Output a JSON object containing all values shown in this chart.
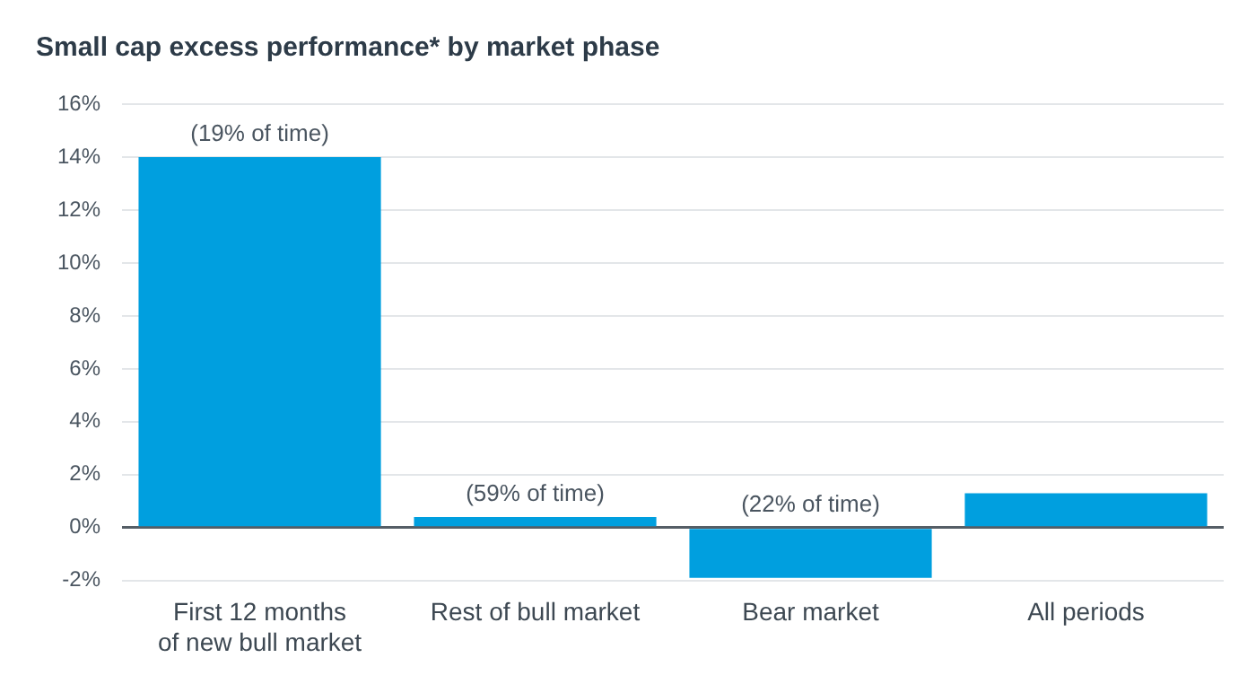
{
  "chart_data": {
    "type": "bar",
    "title": "Small cap excess performance* by market phase",
    "categories": [
      "First 12 months\nof new bull market",
      "Rest of bull market",
      "Bear market",
      "All periods"
    ],
    "values": [
      14,
      0.4,
      -1.9,
      1.3
    ],
    "color": "#009fdf",
    "ylim": [
      -2,
      16
    ],
    "yticks": [
      {
        "value": -2,
        "label": "-2%"
      },
      {
        "value": 0,
        "label": "0%"
      },
      {
        "value": 2,
        "label": "2%"
      },
      {
        "value": 4,
        "label": "4%"
      },
      {
        "value": 6,
        "label": "6%"
      },
      {
        "value": 8,
        "label": "8%"
      },
      {
        "value": 10,
        "label": "10%"
      },
      {
        "value": 12,
        "label": "12%"
      },
      {
        "value": 14,
        "label": "14%"
      },
      {
        "value": 16,
        "label": "16%"
      }
    ],
    "grid": "y",
    "legend": false,
    "annotations": [
      {
        "text": "(19% of time)",
        "x": "First 12 months\nof new bull market",
        "y": 14
      },
      {
        "text": "(59% of time)",
        "x": "Rest of bull market",
        "y": 0.4
      },
      {
        "text": "(22% of time)",
        "x": "Bear market",
        "y": 0
      }
    ]
  }
}
